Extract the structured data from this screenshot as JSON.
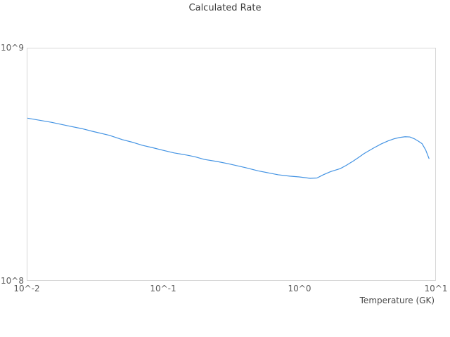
{
  "title": "Calculated Rate",
  "axes": {
    "x_label": "Temperature (GK)"
  },
  "colors": {
    "line": "#4393e3",
    "plot_border": "#d7d7d7",
    "title_text": "#3d3d3d",
    "tick_text": "#5a5a5a"
  },
  "chart_data": {
    "type": "line",
    "title": "Calculated Rate",
    "xlabel": "Temperature (GK)",
    "ylabel": "",
    "x_scale": "log",
    "y_scale": "log",
    "xlim": [
      0.01,
      10
    ],
    "ylim": [
      100000000.0,
      1000000000.0
    ],
    "grid": false,
    "legend": false,
    "x_ticks": [
      "10^-2",
      "10^-1",
      "10^0",
      "10^1"
    ],
    "y_ticks": [
      "10^8",
      "10^9"
    ],
    "series": [
      {
        "name": "Calculated Rate",
        "x": [
          0.01,
          0.015,
          0.02,
          0.025,
          0.03,
          0.04,
          0.05,
          0.06,
          0.07,
          0.085,
          0.1,
          0.12,
          0.15,
          0.17,
          0.2,
          0.25,
          0.3,
          0.4,
          0.5,
          0.6,
          0.7,
          0.85,
          1.0,
          1.1,
          1.2,
          1.35,
          1.5,
          1.7,
          2.0,
          2.2,
          2.5,
          2.7,
          3.0,
          3.5,
          4.0,
          4.5,
          5.0,
          5.5,
          6.0,
          6.5,
          7.0,
          7.5,
          8.0,
          8.5,
          9.0
        ],
        "y": [
          500000000.0,
          480000000.0,
          463000000.0,
          451000000.0,
          439000000.0,
          422000000.0,
          404000000.0,
          393000000.0,
          382000000.0,
          372000000.0,
          363000000.0,
          354000000.0,
          346000000.0,
          341000000.0,
          332000000.0,
          325000000.0,
          318000000.0,
          306000000.0,
          296000000.0,
          290000000.0,
          285000000.0,
          281000000.0,
          279000000.0,
          277000000.0,
          275000000.0,
          276000000.0,
          285000000.0,
          294000000.0,
          303000000.0,
          312000000.0,
          327000000.0,
          337000000.0,
          352000000.0,
          371000000.0,
          387000000.0,
          399000000.0,
          408000000.0,
          413000000.0,
          416000000.0,
          415000000.0,
          408000000.0,
          398000000.0,
          388000000.0,
          365000000.0,
          335000000.0
        ]
      }
    ]
  }
}
